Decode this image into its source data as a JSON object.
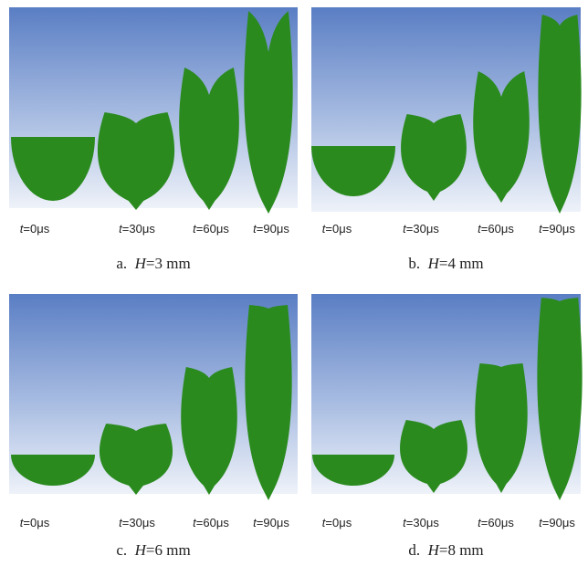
{
  "panels": [
    {
      "times": [
        {
          "var": "t",
          "rest": "=0μs"
        },
        {
          "var": "t",
          "rest": "=30μs"
        },
        {
          "var": "t",
          "rest": "=60μs"
        },
        {
          "var": "t",
          "rest": "=90μs"
        }
      ],
      "caption": {
        "label": "a.",
        "var": "H",
        "rest": "=3 mm"
      }
    },
    {
      "times": [
        {
          "var": "t",
          "rest": "=0μs"
        },
        {
          "var": "t",
          "rest": "=30μs"
        },
        {
          "var": "t",
          "rest": "=60μs"
        },
        {
          "var": "t",
          "rest": "=90μs"
        }
      ],
      "caption": {
        "label": "b.",
        "var": "H",
        "rest": "=4 mm"
      }
    },
    {
      "times": [
        {
          "var": "t",
          "rest": "=0μs"
        },
        {
          "var": "t",
          "rest": "=30μs"
        },
        {
          "var": "t",
          "rest": "=60μs"
        },
        {
          "var": "t",
          "rest": "=90μs"
        }
      ],
      "caption": {
        "label": "c.",
        "var": "H",
        "rest": "=6 mm"
      }
    },
    {
      "times": [
        {
          "var": "t",
          "rest": "=0μs"
        },
        {
          "var": "t",
          "rest": "=30μs"
        },
        {
          "var": "t",
          "rest": "=60μs"
        },
        {
          "var": "t",
          "rest": "=90μs"
        }
      ],
      "caption": {
        "label": "d.",
        "var": "H",
        "rest": "=8 mm"
      }
    }
  ]
}
